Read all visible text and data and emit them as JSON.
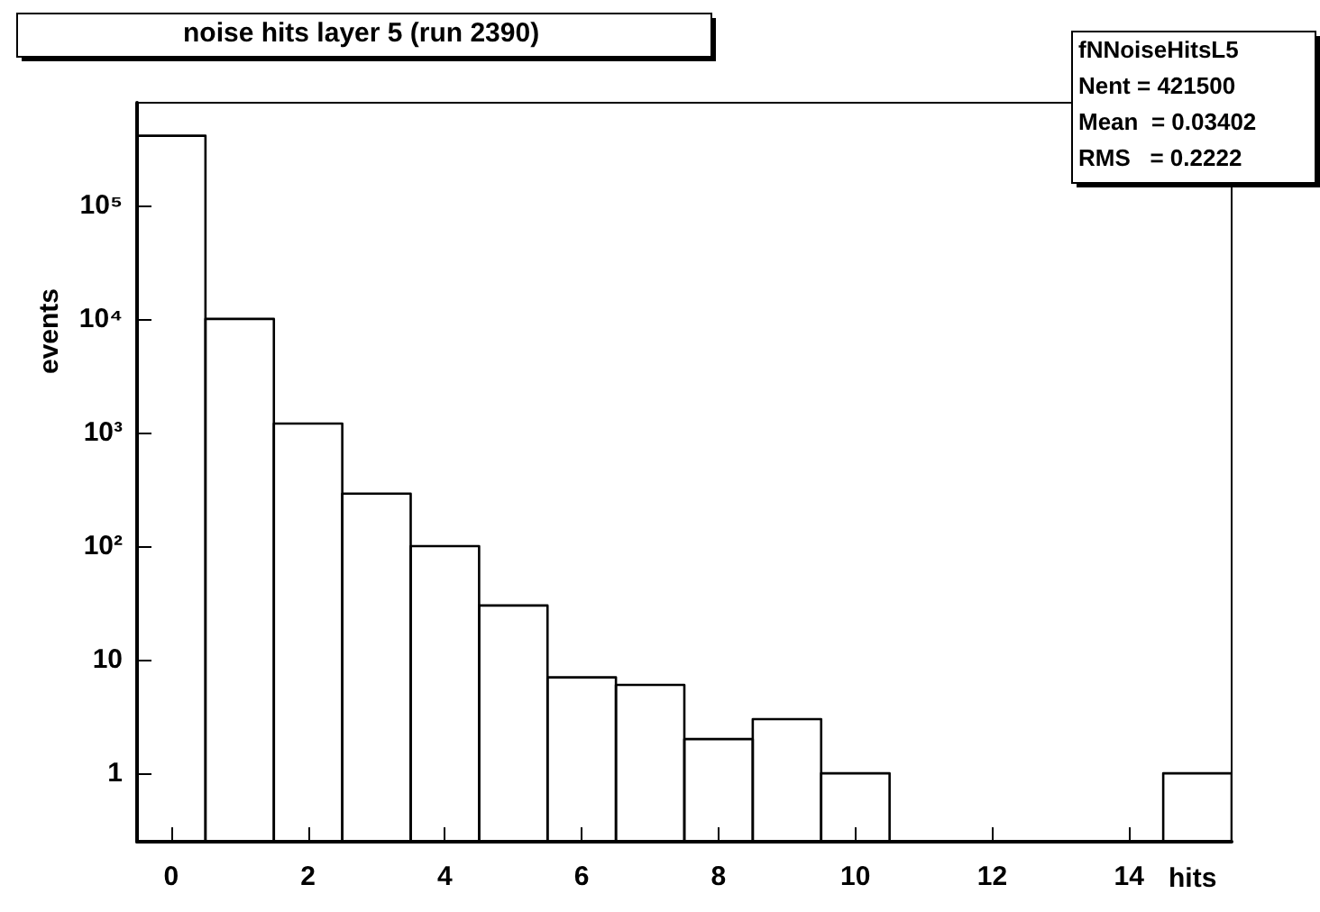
{
  "chart_data": {
    "type": "histogram",
    "title": "noise hits layer 5 (run 2390)",
    "xlabel": "hits",
    "ylabel": "events",
    "bins": [
      -0.5,
      0.5,
      1.5,
      2.5,
      3.5,
      4.5,
      5.5,
      6.5,
      7.5,
      8.5,
      9.5,
      10.5,
      11.5,
      12.5,
      13.5,
      14.5,
      15.5
    ],
    "values": [
      410000,
      10000,
      1200,
      290,
      100,
      30,
      7,
      6,
      2,
      3,
      1,
      null,
      null,
      null,
      null,
      1
    ],
    "color": "#000000",
    "log": "y",
    "xlim": [
      -0.5,
      15.5
    ],
    "xticks": [
      0,
      2,
      4,
      6,
      8,
      10,
      12,
      14
    ],
    "ylim": [
      0.25,
      800000
    ],
    "yticks": [
      1,
      10,
      {
        "value": 100,
        "label": "10²"
      },
      {
        "value": 1000,
        "label": "10³"
      },
      {
        "value": 10000,
        "label": "10⁴"
      },
      {
        "value": 100000,
        "label": "10⁵"
      }
    ],
    "grid": false,
    "annotations": [
      "fNNoiseHitsL5",
      "Nent = 421500",
      "Mean  = 0.03402",
      "RMS   = 0.2222"
    ]
  }
}
